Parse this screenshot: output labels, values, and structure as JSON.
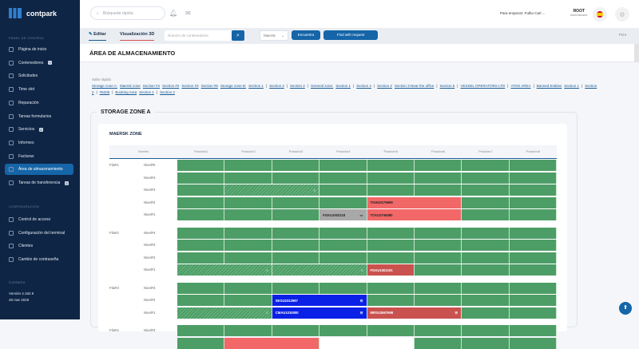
{
  "app": {
    "name": "contpark"
  },
  "sidebar": {
    "section1": "PANEL DE CONTROL",
    "items": [
      {
        "label": "Página de inicio"
      },
      {
        "label": "Contenedores",
        "badge": "+"
      },
      {
        "label": "Solicitudes"
      },
      {
        "label": "Time slot"
      },
      {
        "label": "Reparación"
      },
      {
        "label": "Tareas formularios"
      },
      {
        "label": "Servicios",
        "badge": "2"
      },
      {
        "label": "Informes"
      },
      {
        "label": "Facturas"
      },
      {
        "label": "Área de almacenamiento",
        "active": true
      },
      {
        "label": "Tareas de transferencia",
        "badge": "2"
      }
    ],
    "section2": "CONFIGURACIÓN",
    "config_items": [
      {
        "label": "Control de acceso"
      },
      {
        "label": "Configuración del terminal"
      },
      {
        "label": "Clientes"
      },
      {
        "label": "Cambio de contraseña"
      }
    ],
    "contact": "Contacto",
    "version": "Versión 4.182.9",
    "date": "28 mar 2025"
  },
  "header": {
    "search_placeholder": "Búsqueda rápida",
    "user": "Para empezar: Fulbo Carl ...",
    "role": "ROOT",
    "role_sub": "Administrador"
  },
  "toolbar": {
    "edit": "Editar",
    "view3d": "Visualización 3D",
    "container_placeholder": "Número de contenedores",
    "select": "Maersk",
    "btn1": "Encuentra",
    "btn2": "Find with request",
    "print": "Print"
  },
  "page": {
    "title": "ÁREA DE ALMACENAMIENTO"
  },
  "quick": {
    "label": "Salto rápido",
    "links": [
      "Storage zone A:",
      "Maersk zone",
      "Section #4",
      "Section #2",
      "Section #3",
      "Section #5",
      "Storage zone B:",
      "Section 1",
      "|",
      "Section 2",
      "|",
      "Section 2",
      "|",
      "General zone:",
      "Section 1",
      "|",
      "Section 4",
      "|",
      "Section 2",
      "Section 3-Near the office",
      "|",
      "Section 5",
      "|",
      "VESSEL OPERATORS LTD",
      "|",
      "ATOS AREA",
      "|",
      "Banned Entities",
      "Section 1",
      "|",
      "Section 2",
      "|",
      "#5336",
      "|",
      "Booking Area",
      "Section 1",
      "|",
      "Section 2"
    ]
  },
  "zone": {
    "title": "STORAGE ZONE A",
    "card_title": "MAERSK ZONE",
    "niveles_header": "Niveles",
    "columns": [
      "Posición1",
      "Posición2",
      "Posición3",
      "Posición4",
      "Posición5",
      "Posición6",
      "Posición7",
      "Posición8"
    ],
    "rows": [
      {
        "fila": "Fila#1",
        "nivel": "Nivel#5",
        "cells": []
      },
      {
        "nivel": "Nivel#4",
        "cells": []
      },
      {
        "nivel": "Nivel#3",
        "cells": [
          {
            "c": 2,
            "s": 2,
            "t": "hatch",
            "icon": "≡"
          }
        ]
      },
      {
        "nivel": "Nivel#2",
        "cells": [
          {
            "c": 5,
            "s": 2,
            "t": "red",
            "label": "TGHU0175699"
          }
        ]
      },
      {
        "nivel": "Nivel#1",
        "cells": [
          {
            "c": 4,
            "s": 1,
            "t": "gray",
            "label": "FGKU1002118",
            "icon": "▭"
          },
          {
            "c": 5,
            "s": 2,
            "t": "red",
            "label": "TCKU3746080"
          }
        ]
      },
      {
        "fila": "Fila#2",
        "nivel": "Nivel#4",
        "gap": true,
        "cells": []
      },
      {
        "nivel": "Nivel#3",
        "cells": []
      },
      {
        "nivel": "Nivel#2",
        "cells": []
      },
      {
        "nivel": "Nivel#1",
        "cells": [
          {
            "c": 1,
            "s": 2,
            "t": "hatch",
            "icon": "≡"
          },
          {
            "c": 3,
            "s": 2,
            "t": "hatch",
            "icon": "≡"
          },
          {
            "c": 5,
            "s": 1,
            "t": "dred",
            "label": "FGKU1002191"
          }
        ]
      },
      {
        "fila": "Fila#3",
        "nivel": "Nivel#3",
        "gap": true,
        "cells": []
      },
      {
        "nivel": "Nivel#2",
        "cells": [
          {
            "c": 3,
            "s": 2,
            "t": "blue",
            "label": "SEGU2312987",
            "icon": "☰"
          }
        ]
      },
      {
        "nivel": "Nivel#1",
        "cells": [
          {
            "c": 1,
            "s": 2,
            "t": "hatch",
            "icon": "≡"
          },
          {
            "c": 3,
            "s": 2,
            "t": "blue",
            "label": "CMAU1010000",
            "icon": "☰"
          },
          {
            "c": 5,
            "s": 2,
            "t": "dred",
            "label": "MRSU2667998",
            "icon": "☰"
          }
        ]
      },
      {
        "fila": "Fila#4",
        "nivel": "Nivel#3",
        "gap": true,
        "cells": []
      },
      {
        "nivel": "",
        "cells": [
          {
            "c": 2,
            "s": 2,
            "t": "red"
          },
          {
            "c": 4,
            "s": 2,
            "t": "white"
          }
        ]
      }
    ]
  }
}
